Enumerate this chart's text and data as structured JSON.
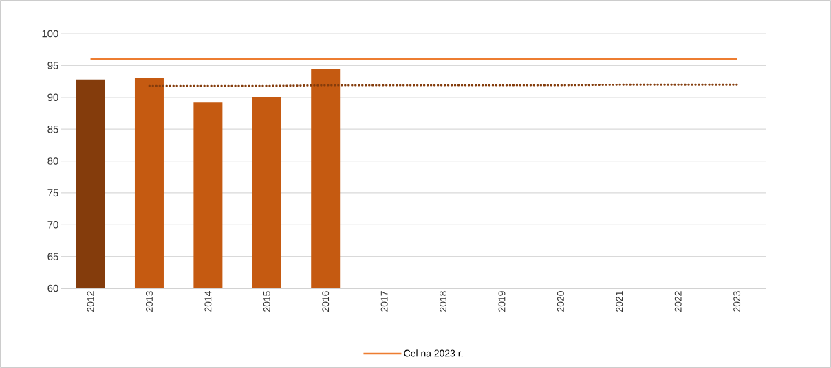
{
  "chart_data": {
    "type": "bar",
    "categories": [
      "2012",
      "2013",
      "2014",
      "2015",
      "2016",
      "2017",
      "2018",
      "2019",
      "2020",
      "2021",
      "2022",
      "2023"
    ],
    "values": [
      92.8,
      93.0,
      89.2,
      90.0,
      94.4,
      null,
      null,
      null,
      null,
      null,
      null,
      null
    ],
    "colors": [
      "#843c0c",
      "#c55a11",
      "#c55a11",
      "#c55a11",
      "#c55a11",
      "#c55a11",
      "#c55a11",
      "#c55a11",
      "#c55a11",
      "#c55a11",
      "#c55a11",
      "#c55a11"
    ],
    "series": [
      {
        "type": "line",
        "name": "Cel na 2023 r.",
        "color": "#ed7d31",
        "line_style": "solid",
        "values": [
          96,
          96,
          96,
          96,
          96,
          96,
          96,
          96,
          96,
          96,
          96,
          96
        ]
      },
      {
        "type": "line",
        "color": "#843c0c",
        "line_style": "dotted",
        "values": [
          null,
          91.8,
          91.8,
          91.8,
          91.9,
          91.9,
          91.9,
          91.9,
          91.9,
          92.0,
          92.0,
          92.0
        ]
      }
    ],
    "ylim": [
      60,
      100
    ],
    "yticks": [
      60,
      65,
      70,
      75,
      80,
      85,
      90,
      95,
      100
    ],
    "grid": "y",
    "legend": "bottom",
    "marker": "none"
  }
}
